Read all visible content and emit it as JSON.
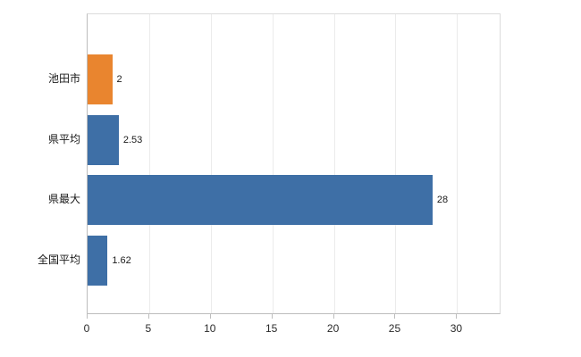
{
  "chart_data": {
    "type": "bar",
    "orientation": "horizontal",
    "title": "",
    "xlabel": "",
    "ylabel": "",
    "legend": "none",
    "grid": "vertical-light",
    "categories": [
      "池田市",
      "県平均",
      "県最大",
      "全国平均"
    ],
    "values": [
      2,
      2.53,
      28,
      1.62
    ],
    "value_labels": [
      "2",
      "2.53",
      "28",
      "1.62"
    ],
    "bar_colors": [
      "#E9852F",
      "#3E6FA6",
      "#3E6FA6",
      "#3E6FA6"
    ],
    "accent_orange": "#E9852F",
    "accent_blue": "#3E6FA6",
    "x_ticks": [
      0,
      5,
      10,
      15,
      20,
      25,
      30
    ],
    "xlim": [
      0,
      33.6
    ]
  }
}
